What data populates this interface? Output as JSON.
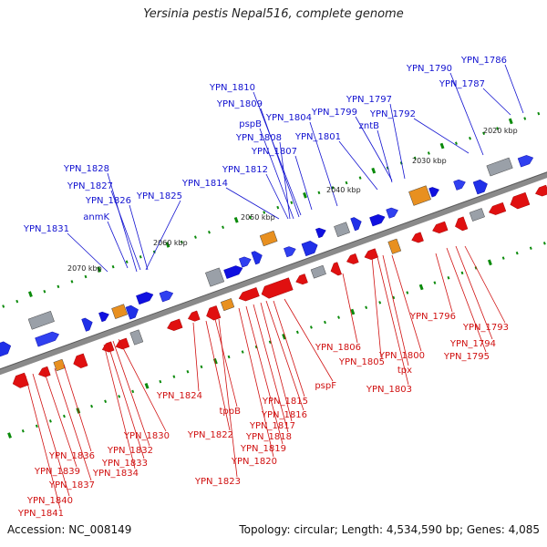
{
  "title": "Yersinia pestis Nepal516, complete genome",
  "accession": "Accession: NC_008149",
  "stats": "Topology: circular; Length: 4,534,590 bp; Genes: 4,085",
  "kbp_ticks": [
    "2020 kbp",
    "2030 kbp",
    "2040 kbp",
    "2050 kbp",
    "2060 kbp",
    "2070 kbp"
  ],
  "blue_labels": [
    "YPN_1786",
    "YPN_1787",
    "YPN_1790",
    "YPN_1792",
    "YPN_1797",
    "YPN_1799",
    "zntB",
    "YPN_1801",
    "YPN_1804",
    "YPN_1810",
    "YPN_1809",
    "pspB",
    "YPN_1808",
    "YPN_1807",
    "YPN_1812",
    "YPN_1814",
    "YPN_1828",
    "YPN_1827",
    "YPN_1826",
    "anmK",
    "YPN_1825",
    "YPN_1831"
  ],
  "red_labels": [
    "YPN_1793",
    "YPN_1794",
    "YPN_1795",
    "YPN_1796",
    "YPN_1800",
    "tpx",
    "YPN_1803",
    "YPN_1805",
    "YPN_1806",
    "pspF",
    "YPN_1815",
    "YPN_1816",
    "YPN_1817",
    "YPN_1818",
    "YPN_1819",
    "YPN_1820",
    "tppB",
    "YPN_1822",
    "YPN_1823",
    "YPN_1824",
    "YPN_1830",
    "YPN_1832",
    "YPN_1833",
    "YPN_1834",
    "YPN_1836",
    "YPN_1837",
    "YPN_1839",
    "YPN_1840",
    "YPN_1841"
  ],
  "colors": {
    "backbone": "#888888",
    "forward": "#1010e0",
    "reverse": "#e01010",
    "label_blue": "#1212d0",
    "label_red": "#d01010"
  }
}
